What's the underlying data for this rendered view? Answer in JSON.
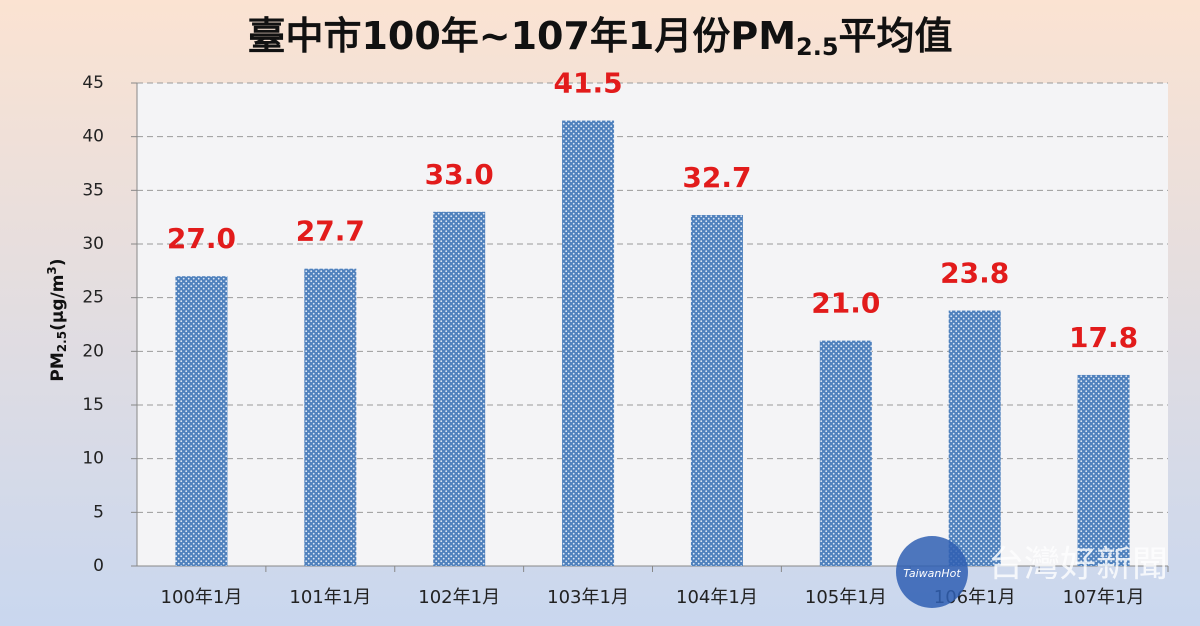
{
  "chart_data": {
    "type": "bar",
    "title": [
      "臺中市100年~107年1月份PM",
      "2.5",
      "平均值"
    ],
    "ylabel": [
      "PM",
      "2.5",
      "(μg/m",
      "3",
      ")"
    ],
    "categories": [
      "100年1月",
      "101年1月",
      "102年1月",
      "103年1月",
      "104年1月",
      "105年1月",
      "106年1月",
      "107年1月"
    ],
    "values": [
      27.0,
      27.7,
      33.0,
      41.5,
      32.7,
      21.0,
      23.8,
      17.8
    ],
    "value_labels": [
      "27.0",
      "27.7",
      "33.0",
      "41.5",
      "32.7",
      "21.0",
      "23.8",
      "17.8"
    ],
    "color": "#4f81bd",
    "ylim": [
      0,
      45
    ],
    "yticks": [
      0,
      5,
      10,
      15,
      20,
      25,
      30,
      35,
      40,
      45
    ],
    "grid": true
  },
  "watermark": {
    "logo": "TaiwanHot",
    "name": "台灣好新聞"
  }
}
